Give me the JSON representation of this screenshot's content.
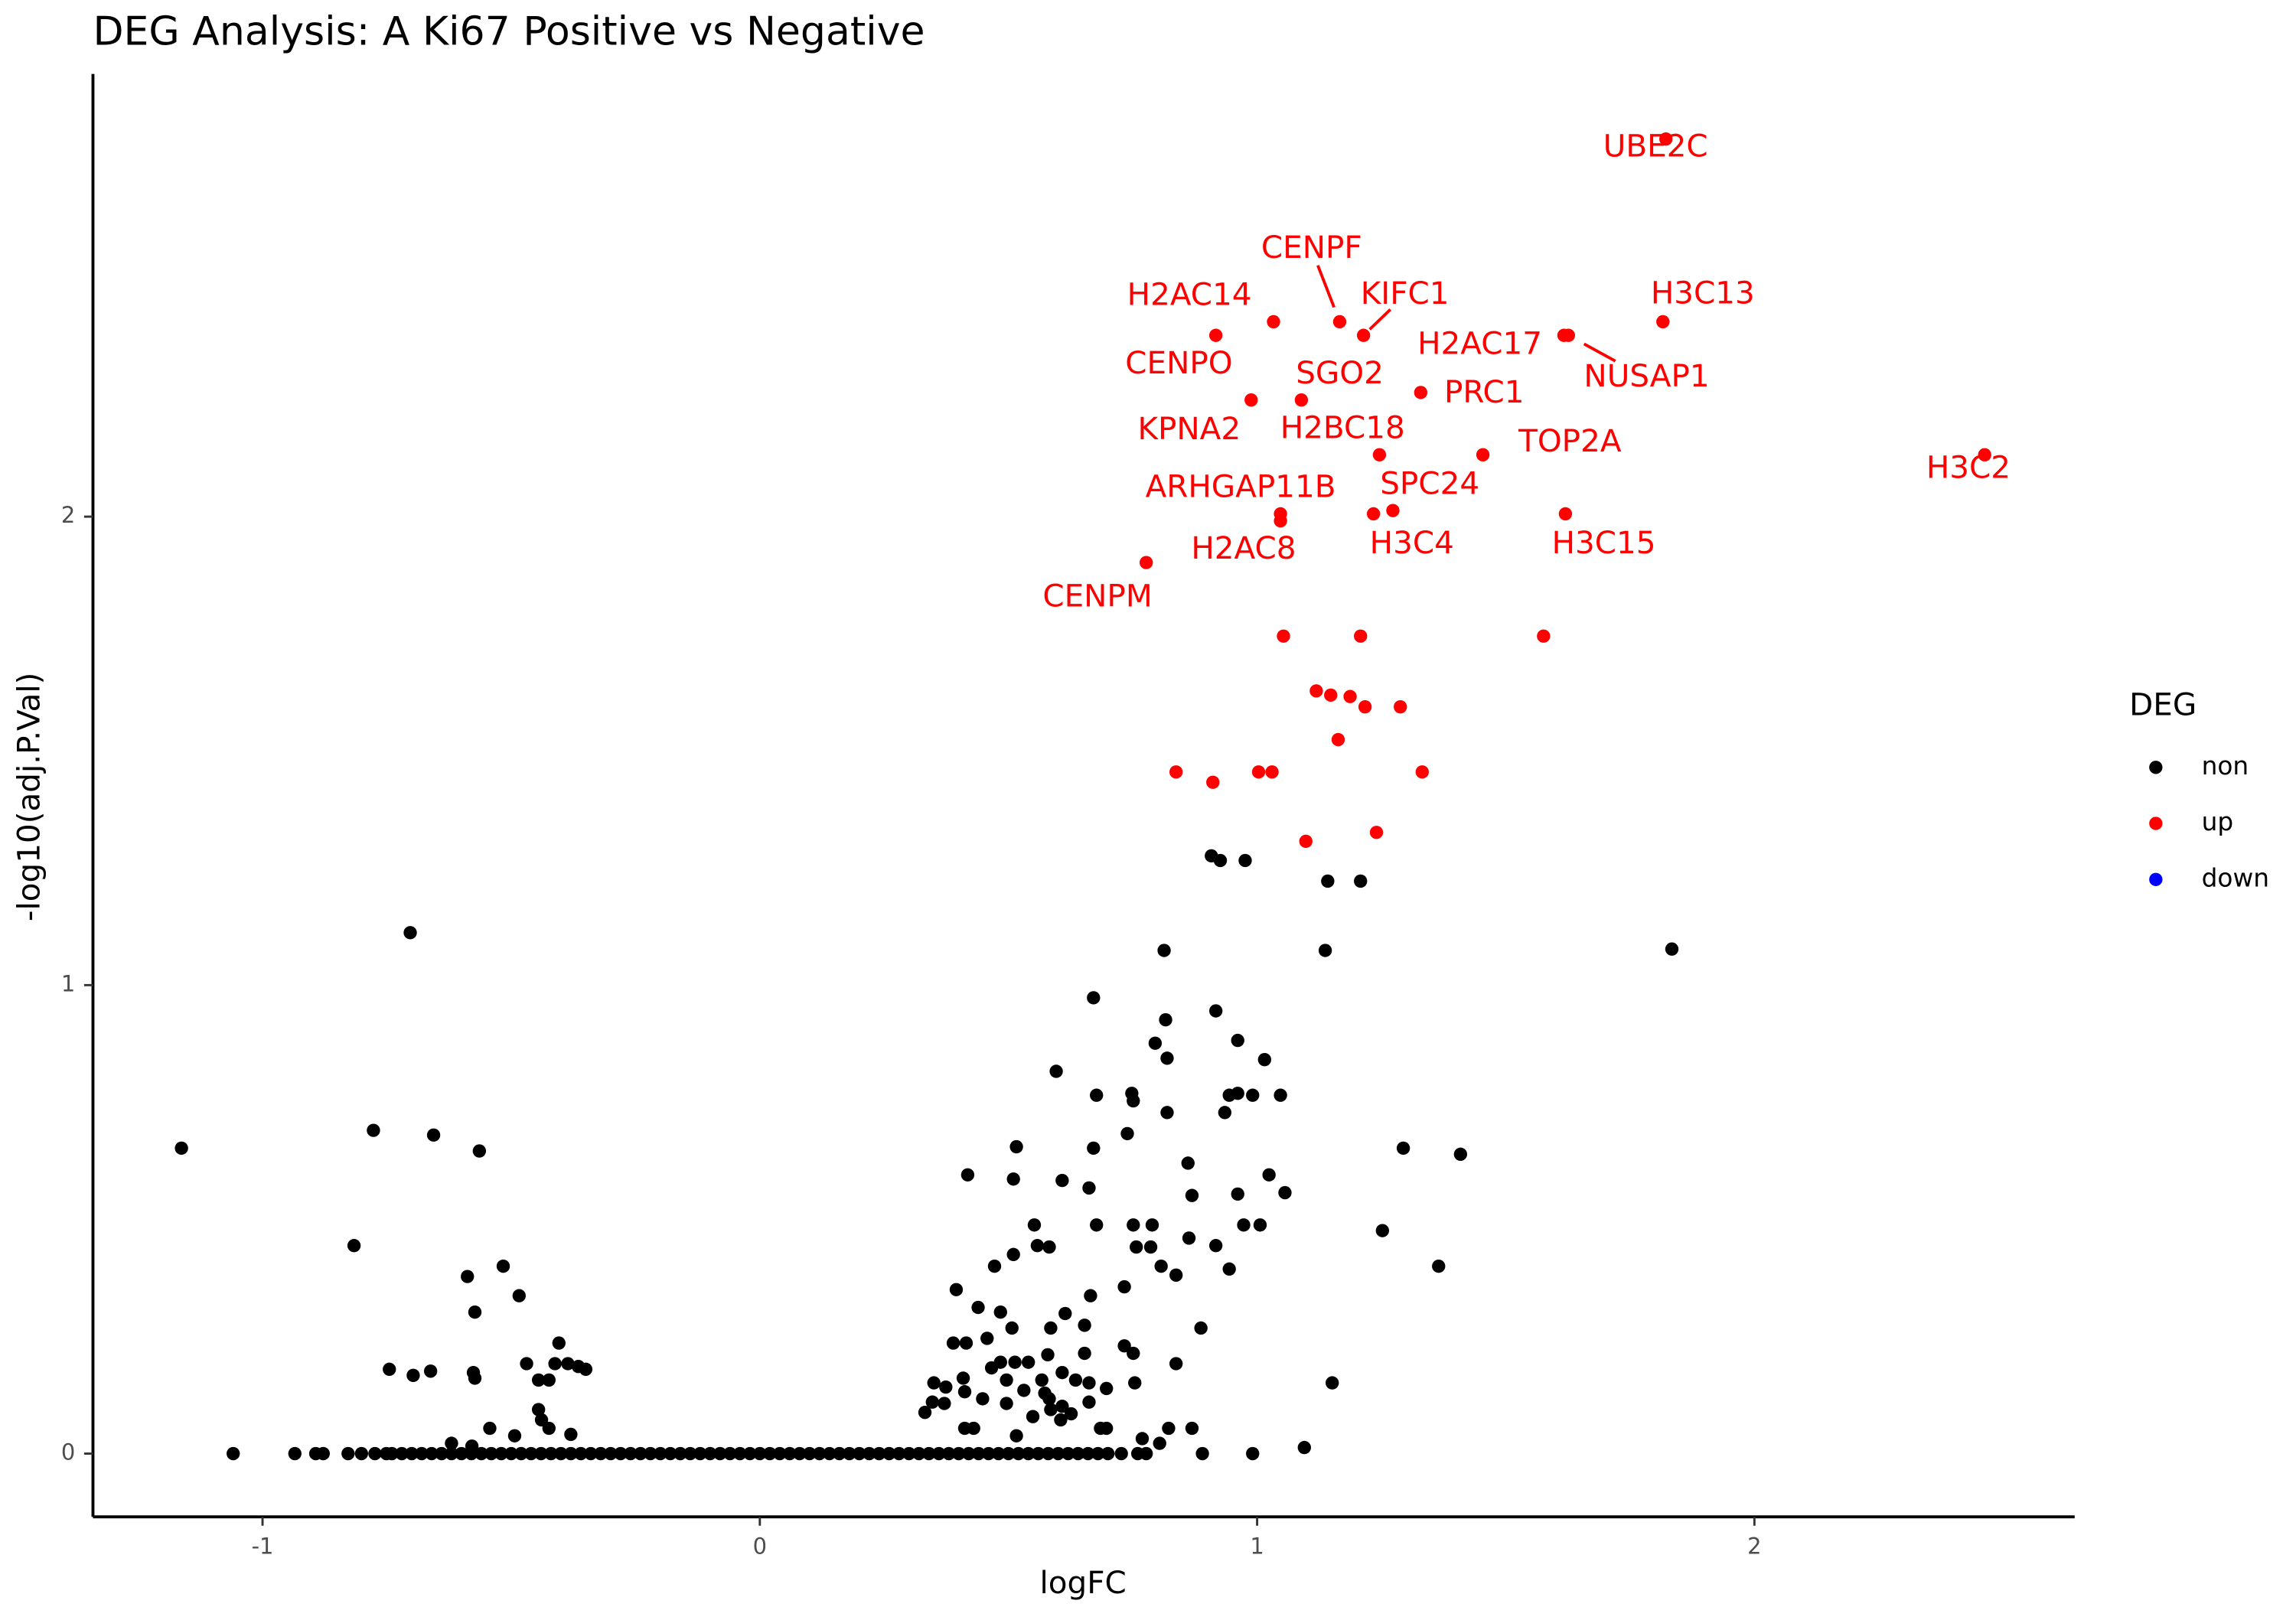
{
  "chart_data": {
    "type": "scatter",
    "title": "DEG Analysis: A Ki67 Positive vs Negative",
    "x_label": "logFC",
    "y_label": "-log10(adj.P.Val)",
    "legend_title": "DEG",
    "legend": "right",
    "grid": false,
    "xlim": [
      -1.341,
      2.644
    ],
    "ylim": [
      -0.135,
      2.945
    ],
    "xticks": [
      -1,
      0,
      1,
      2
    ],
    "yticks": [
      0,
      1,
      2
    ],
    "series": [
      {
        "name": "non",
        "color": "#000000",
        "x": [
          -1.163,
          -1.059,
          -0.935,
          -0.893,
          -0.878,
          -0.828,
          -0.801,
          -0.774,
          -0.751,
          -0.703,
          -0.777,
          -0.656,
          -0.564,
          -0.816,
          -0.745,
          -0.697,
          -0.662,
          -0.588,
          -0.516,
          -0.573,
          -0.576,
          -0.573,
          -0.484,
          -0.469,
          -0.445,
          -0.424,
          -0.404,
          -0.412,
          -0.386,
          -0.365,
          -0.35,
          -0.445,
          -0.439,
          -0.424,
          -0.543,
          -0.493,
          -0.38,
          -0.62,
          -0.579,
          -0.74,
          -0.72,
          -0.7,
          -0.68,
          -0.66,
          -0.64,
          -0.62,
          -0.6,
          -0.58,
          -0.56,
          -0.54,
          -0.52,
          -0.5,
          -0.48,
          -0.46,
          -0.44,
          -0.42,
          -0.4,
          -0.38,
          -0.36,
          -0.34,
          -0.32,
          -0.3,
          -0.28,
          -0.26,
          -0.24,
          -0.22,
          -0.2,
          -0.18,
          -0.16,
          -0.14,
          -0.12,
          -0.1,
          -0.08,
          -0.06,
          -0.04,
          -0.02,
          0,
          0.02,
          0.04,
          0.06,
          0.08,
          0.1,
          0.12,
          0.14,
          0.16,
          0.18,
          0.2,
          0.22,
          0.24,
          0.26,
          0.28,
          0.3,
          0.32,
          0.34,
          0.36,
          0.38,
          0.4,
          0.42,
          0.44,
          0.46,
          0.48,
          0.5,
          0.52,
          0.54,
          0.56,
          0.58,
          0.6,
          0.62,
          0.64,
          0.66,
          0.68,
          0.7,
          0.332,
          0.347,
          0.43,
          0.412,
          0.516,
          0.549,
          0.585,
          0.605,
          0.626,
          0.685,
          0.697,
          0.769,
          0.804,
          0.822,
          0.869,
          0.89,
          0.991,
          1.095,
          0.727,
          0.76,
          0.777,
          0.671,
          0.813,
          0.596,
          0.816,
          0.917,
          0.795,
          0.819,
          0.961,
          1.015,
          0.677,
          0.748,
          0.751,
          0.819,
          0.739,
          0.935,
          0.944,
          0.961,
          0.991,
          1.047,
          0.671,
          0.516,
          0.418,
          0.51,
          0.608,
          0.662,
          0.861,
          1.024,
          0.869,
          0.961,
          1.056,
          0.552,
          0.677,
          0.751,
          0.789,
          0.973,
          1.006,
          0.757,
          0.786,
          0.863,
          0.558,
          0.582,
          0.51,
          0.472,
          0.395,
          0.807,
          0.837,
          0.917,
          0.944,
          0.733,
          0.665,
          0.439,
          0.484,
          0.614,
          0.653,
          0.507,
          0.585,
          0.887,
          0.415,
          0.457,
          0.389,
          0.733,
          0.751,
          0.653,
          0.579,
          0.513,
          0.54,
          0.484,
          0.837,
          0.35,
          0.374,
          0.409,
          0.466,
          0.496,
          0.567,
          0.608,
          0.635,
          0.662,
          0.754,
          0.412,
          0.531,
          0.573,
          0.697,
          0.448,
          0.371,
          0.496,
          0.582,
          0.608,
          0.662,
          0.908,
          0.926,
          0.976,
          1.142,
          1.208,
          1.137,
          1.834,
          1.294,
          1.409,
          1.252,
          1.365,
          1.151
        ],
        "values": [
          0.652,
          0,
          0,
          0,
          0,
          0,
          0,
          0,
          0,
          1.112,
          0.69,
          0.68,
          0.646,
          0.444,
          0.18,
          0.167,
          0.176,
          0.378,
          0.4,
          0.302,
          0.173,
          0.161,
          0.337,
          0.192,
          0.157,
          0.157,
          0.236,
          0.192,
          0.192,
          0.186,
          0.18,
          0.094,
          0.072,
          0.054,
          0.054,
          0.038,
          0.041,
          0.022,
          0.016,
          0,
          0,
          0,
          0,
          0,
          0,
          0,
          0,
          0,
          0,
          0,
          0,
          0,
          0,
          0,
          0,
          0,
          0,
          0,
          0,
          0,
          0,
          0,
          0,
          0,
          0,
          0,
          0,
          0,
          0,
          0,
          0,
          0,
          0,
          0,
          0,
          0,
          0,
          0,
          0,
          0,
          0,
          0,
          0,
          0,
          0,
          0,
          0,
          0,
          0,
          0,
          0,
          0,
          0,
          0,
          0,
          0,
          0,
          0,
          0,
          0,
          0,
          0,
          0,
          0,
          0,
          0,
          0,
          0,
          0,
          0,
          0,
          0,
          0.088,
          0.11,
          0.054,
          0.054,
          0.038,
          0.079,
          0.094,
          0.072,
          0.085,
          0.054,
          0.054,
          0.032,
          0.022,
          0.054,
          0.054,
          0,
          0,
          0.013,
          0,
          0,
          0,
          0.973,
          1.074,
          0.816,
          0.926,
          0.945,
          0.876,
          0.844,
          0.882,
          0.841,
          0.765,
          0.769,
          0.753,
          0.728,
          0.683,
          0.728,
          0.765,
          0.769,
          0.765,
          0.765,
          0.652,
          0.655,
          0.595,
          0.586,
          0.583,
          0.567,
          0.62,
          0.595,
          0.551,
          0.554,
          0.557,
          0.488,
          0.488,
          0.488,
          0.488,
          0.488,
          0.488,
          0.441,
          0.441,
          0.46,
          0.444,
          0.441,
          0.425,
          0.4,
          0.35,
          0.4,
          0.381,
          0.444,
          0.394,
          0.356,
          0.337,
          0.312,
          0.302,
          0.299,
          0.274,
          0.268,
          0.268,
          0.268,
          0.236,
          0.246,
          0.236,
          0.23,
          0.214,
          0.214,
          0.211,
          0.195,
          0.195,
          0.195,
          0.192,
          0.151,
          0.142,
          0.161,
          0.183,
          0.157,
          0.157,
          0.173,
          0.157,
          0.151,
          0.151,
          0.132,
          0.135,
          0.129,
          0.139,
          0.117,
          0.107,
          0.107,
          0.117,
          0.101,
          0.11,
          1.276,
          1.266,
          1.266,
          1.222,
          1.222,
          1.074,
          1.077,
          0.652,
          0.639,
          0.476,
          0.4,
          0.151
        ]
      },
      {
        "name": "up",
        "color": "#ff0000",
        "x": [
          1.822,
          1.816,
          2.463,
          1.626,
          1.617,
          1.166,
          1.214,
          1.033,
          0.917,
          0.988,
          1.089,
          1.329,
          1.454,
          1.246,
          1.273,
          1.047,
          1.047,
          1.234,
          1.62,
          0.777,
          1.053,
          1.208,
          1.576,
          1.119,
          1.148,
          1.187,
          1.217,
          1.288,
          1.163,
          0.837,
          0.911,
          1.003,
          1.03,
          1.332,
          1.24,
          1.098
        ],
        "values": [
          2.806,
          2.416,
          2.132,
          2.387,
          2.387,
          2.416,
          2.387,
          2.416,
          2.387,
          2.249,
          2.249,
          2.265,
          2.132,
          2.132,
          2.013,
          2.006,
          1.991,
          2.006,
          2.006,
          1.902,
          1.745,
          1.745,
          1.745,
          1.628,
          1.619,
          1.616,
          1.594,
          1.594,
          1.524,
          1.455,
          1.433,
          1.455,
          1.455,
          1.455,
          1.326,
          1.307
        ],
        "labels": [
          "UBE2C",
          "H3C13",
          "H3C2",
          "NUSAP1",
          "H2AC17",
          "CENPF",
          "KIFC1",
          "H2AC14",
          "CENPO",
          "KPNA2",
          "SGO2",
          "PRC1",
          "TOP2A",
          "H2BC18",
          "SPC24",
          "ARHGAP11B",
          "H2AC8",
          "H3C4",
          "H3C15",
          "CENPM",
          null,
          null,
          null,
          null,
          null,
          null,
          null,
          null,
          null,
          null,
          null,
          null,
          null,
          null,
          null,
          null
        ]
      },
      {
        "name": "down",
        "color": "#0000ff",
        "x": [],
        "values": []
      }
    ]
  }
}
